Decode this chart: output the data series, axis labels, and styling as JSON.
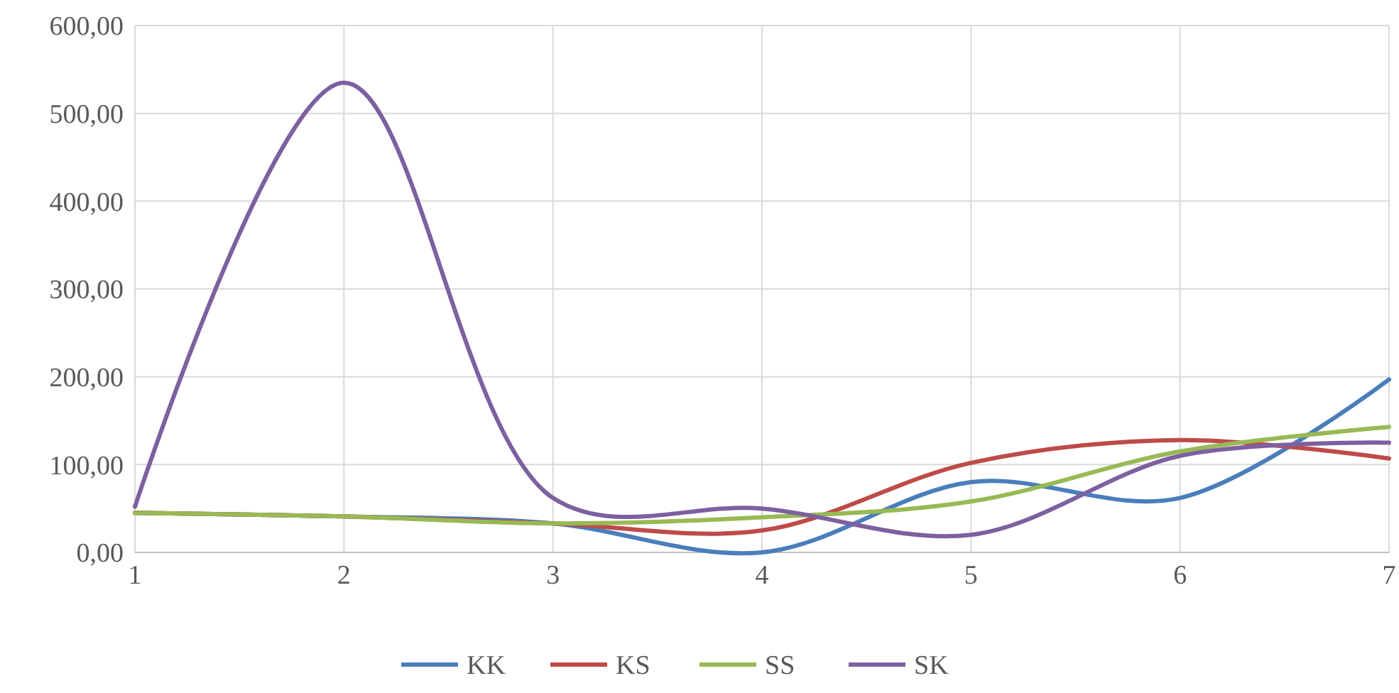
{
  "chart_data": {
    "type": "line",
    "x": [
      1,
      2,
      3,
      4,
      5,
      6,
      7
    ],
    "xlim": [
      1,
      7
    ],
    "xticks": [
      1,
      2,
      3,
      4,
      5,
      6,
      7
    ],
    "ylim": [
      0,
      600
    ],
    "yticks": [
      {
        "value": 0,
        "label": "0,00"
      },
      {
        "value": 100,
        "label": "100,00"
      },
      {
        "value": 200,
        "label": "200,00"
      },
      {
        "value": 300,
        "label": "300,00"
      },
      {
        "value": 400,
        "label": "400,00"
      },
      {
        "value": 500,
        "label": "500,00"
      },
      {
        "value": 600,
        "label": "600,00"
      }
    ],
    "grid": true,
    "legend": "bottom",
    "marker": "none",
    "line_style": "solid",
    "series": [
      {
        "name": "KK",
        "color": "#4a7ebb",
        "values": [
          45,
          41,
          33,
          0,
          80,
          62,
          197
        ]
      },
      {
        "name": "KS",
        "color": "#be4b48",
        "values": [
          45,
          41,
          33,
          25,
          102,
          128,
          107
        ]
      },
      {
        "name": "SS",
        "color": "#98b954",
        "values": [
          45,
          41,
          33,
          40,
          58,
          115,
          143
        ]
      },
      {
        "name": "SK",
        "color": "#7d60a0",
        "values": [
          52,
          535,
          62,
          50,
          20,
          110,
          125
        ]
      }
    ]
  }
}
